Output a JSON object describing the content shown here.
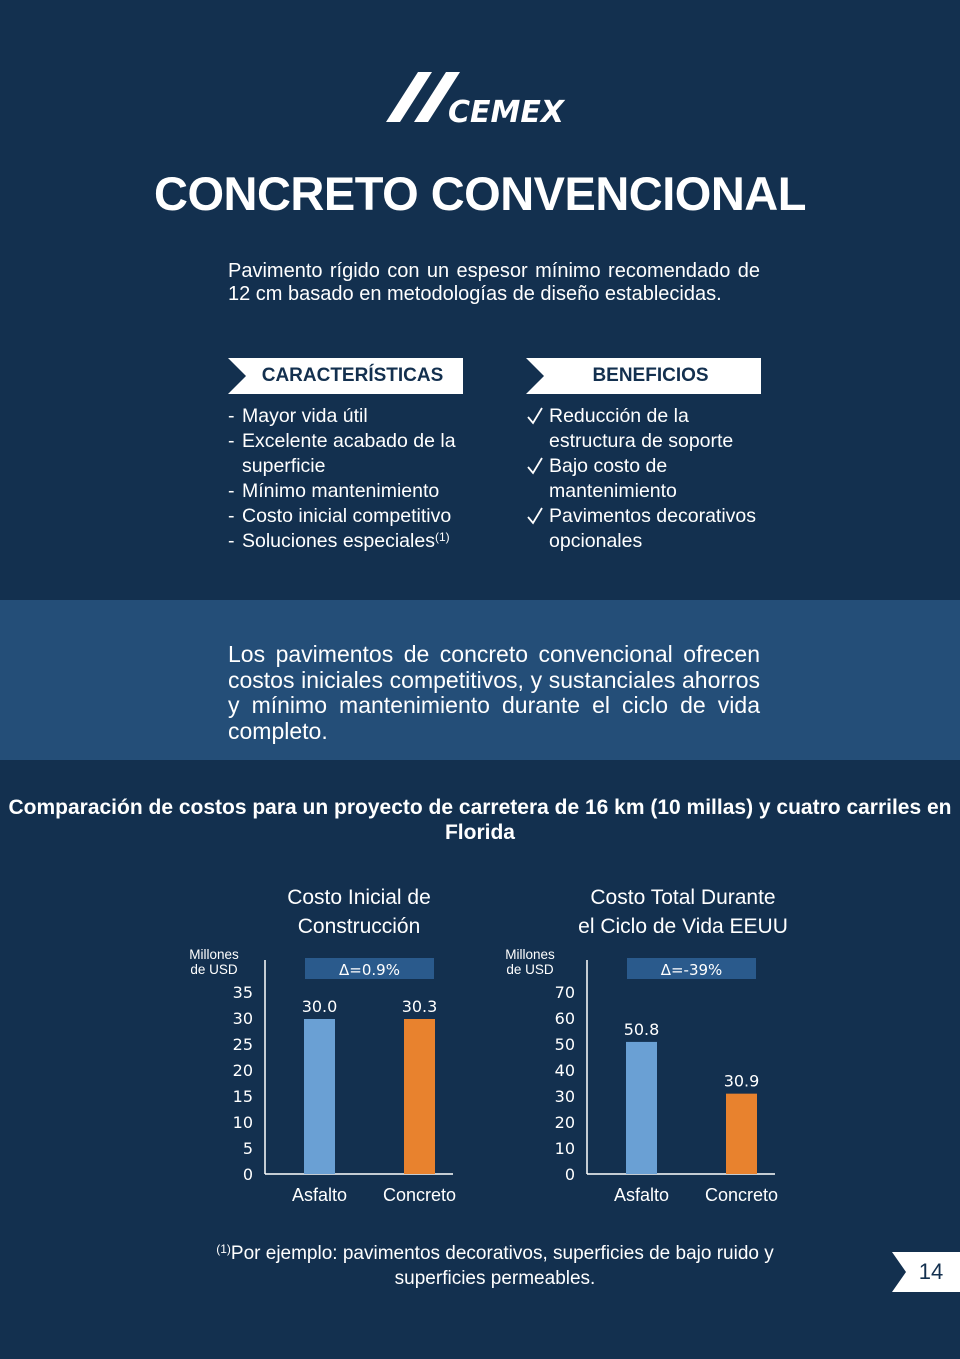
{
  "brand": {
    "logo_text": "CEMEX"
  },
  "title": "CONCRETO CONVENCIONAL",
  "intro": "Pavimento rígido con un espesor mínimo recomendado de 12 cm basado en  metodologías de diseño establecidas.",
  "characteristics": {
    "header": "CARACTERÍSTICAS",
    "items": [
      {
        "text": "Mayor vida útil"
      },
      {
        "text": "Excelente acabado de la superficie"
      },
      {
        "text": "Mínimo mantenimiento"
      },
      {
        "text": "Costo inicial competitivo"
      },
      {
        "text": "Soluciones especiales",
        "sup": "(1)"
      }
    ],
    "bullet": "-"
  },
  "benefits": {
    "header": "BENEFICIOS",
    "items": [
      {
        "text": "Reducción de la estructura de soporte"
      },
      {
        "text": "Bajo costo de mantenimiento"
      },
      {
        "text": "Pavimentos decorativos opcionales"
      }
    ]
  },
  "band_text": "Los pavimentos de concreto convencional ofrecen costos iniciales competitivos, y sustanciales ahorros y mínimo mantenimiento durante el ciclo de vida completo.",
  "comparison_title": "Comparación de costos para un proyecto de carretera de 16 km (10 millas) y cuatro carriles en Florida",
  "colors": {
    "background": "#13304f",
    "band": "#244e78",
    "asphalt": "#6aa0d4",
    "concrete": "#e8822e",
    "delta_box": "#2a5a8c"
  },
  "chart_data": [
    {
      "type": "bar",
      "title": "Costo Inicial de Construcción",
      "ylabel": "Millones de USD",
      "categories": [
        "Asfalto",
        "Concreto"
      ],
      "values": [
        30.0,
        30.3
      ],
      "value_labels": [
        "30.0",
        "30.3"
      ],
      "yticks": [
        0,
        5,
        10,
        15,
        20,
        25,
        30,
        35
      ],
      "ylim": [
        0,
        35
      ],
      "delta_label": "Δ=0.9%",
      "grid": false
    },
    {
      "type": "bar",
      "title": "Costo Total Durante el Ciclo de Vida EEUU",
      "ylabel": "Millones de USD",
      "categories": [
        "Asfalto",
        "Concreto"
      ],
      "values": [
        50.8,
        30.9
      ],
      "value_labels": [
        "50.8",
        "30.9"
      ],
      "yticks": [
        0,
        10,
        20,
        30,
        40,
        50,
        60,
        70
      ],
      "ylim": [
        0,
        70
      ],
      "delta_label": "Δ=-39%",
      "grid": false
    }
  ],
  "footnote": {
    "sup": "(1)",
    "text": "Por ejemplo: pavimentos decorativos, superficies de bajo ruido y superficies permeables."
  },
  "page_number": "14"
}
